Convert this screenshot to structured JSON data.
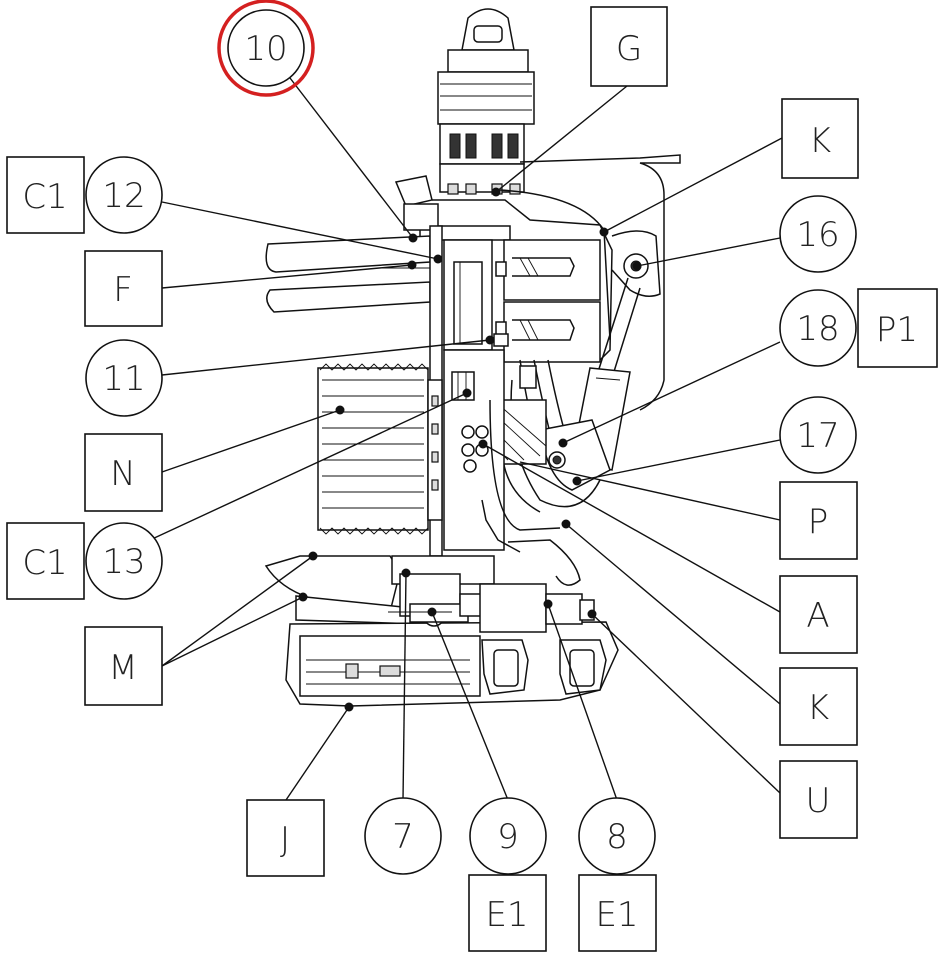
{
  "callouts": [
    {
      "id": "c10",
      "label": "10",
      "highlighted": true
    },
    {
      "id": "c12",
      "label": "12"
    },
    {
      "id": "c11",
      "label": "11"
    },
    {
      "id": "c13",
      "label": "13"
    },
    {
      "id": "c16",
      "label": "16"
    },
    {
      "id": "c18",
      "label": "18"
    },
    {
      "id": "c17",
      "label": "17"
    },
    {
      "id": "c7",
      "label": "7"
    },
    {
      "id": "c9",
      "label": "9"
    },
    {
      "id": "c8",
      "label": "8"
    }
  ],
  "boxes": [
    {
      "id": "bG",
      "label": "G"
    },
    {
      "id": "bK1",
      "label": "K"
    },
    {
      "id": "bC1a",
      "label": "C1"
    },
    {
      "id": "bF",
      "label": "F"
    },
    {
      "id": "bN",
      "label": "N"
    },
    {
      "id": "bC1b",
      "label": "C1"
    },
    {
      "id": "bM",
      "label": "M"
    },
    {
      "id": "bP1",
      "label": "P1"
    },
    {
      "id": "bP",
      "label": "P"
    },
    {
      "id": "bA",
      "label": "A"
    },
    {
      "id": "bK2",
      "label": "K"
    },
    {
      "id": "bU",
      "label": "U"
    },
    {
      "id": "bJ",
      "label": "J"
    },
    {
      "id": "bE1a",
      "label": "E1"
    },
    {
      "id": "bE1b",
      "label": "E1"
    }
  ],
  "colors": {
    "highlight": "#d42020",
    "line": "#111111"
  }
}
